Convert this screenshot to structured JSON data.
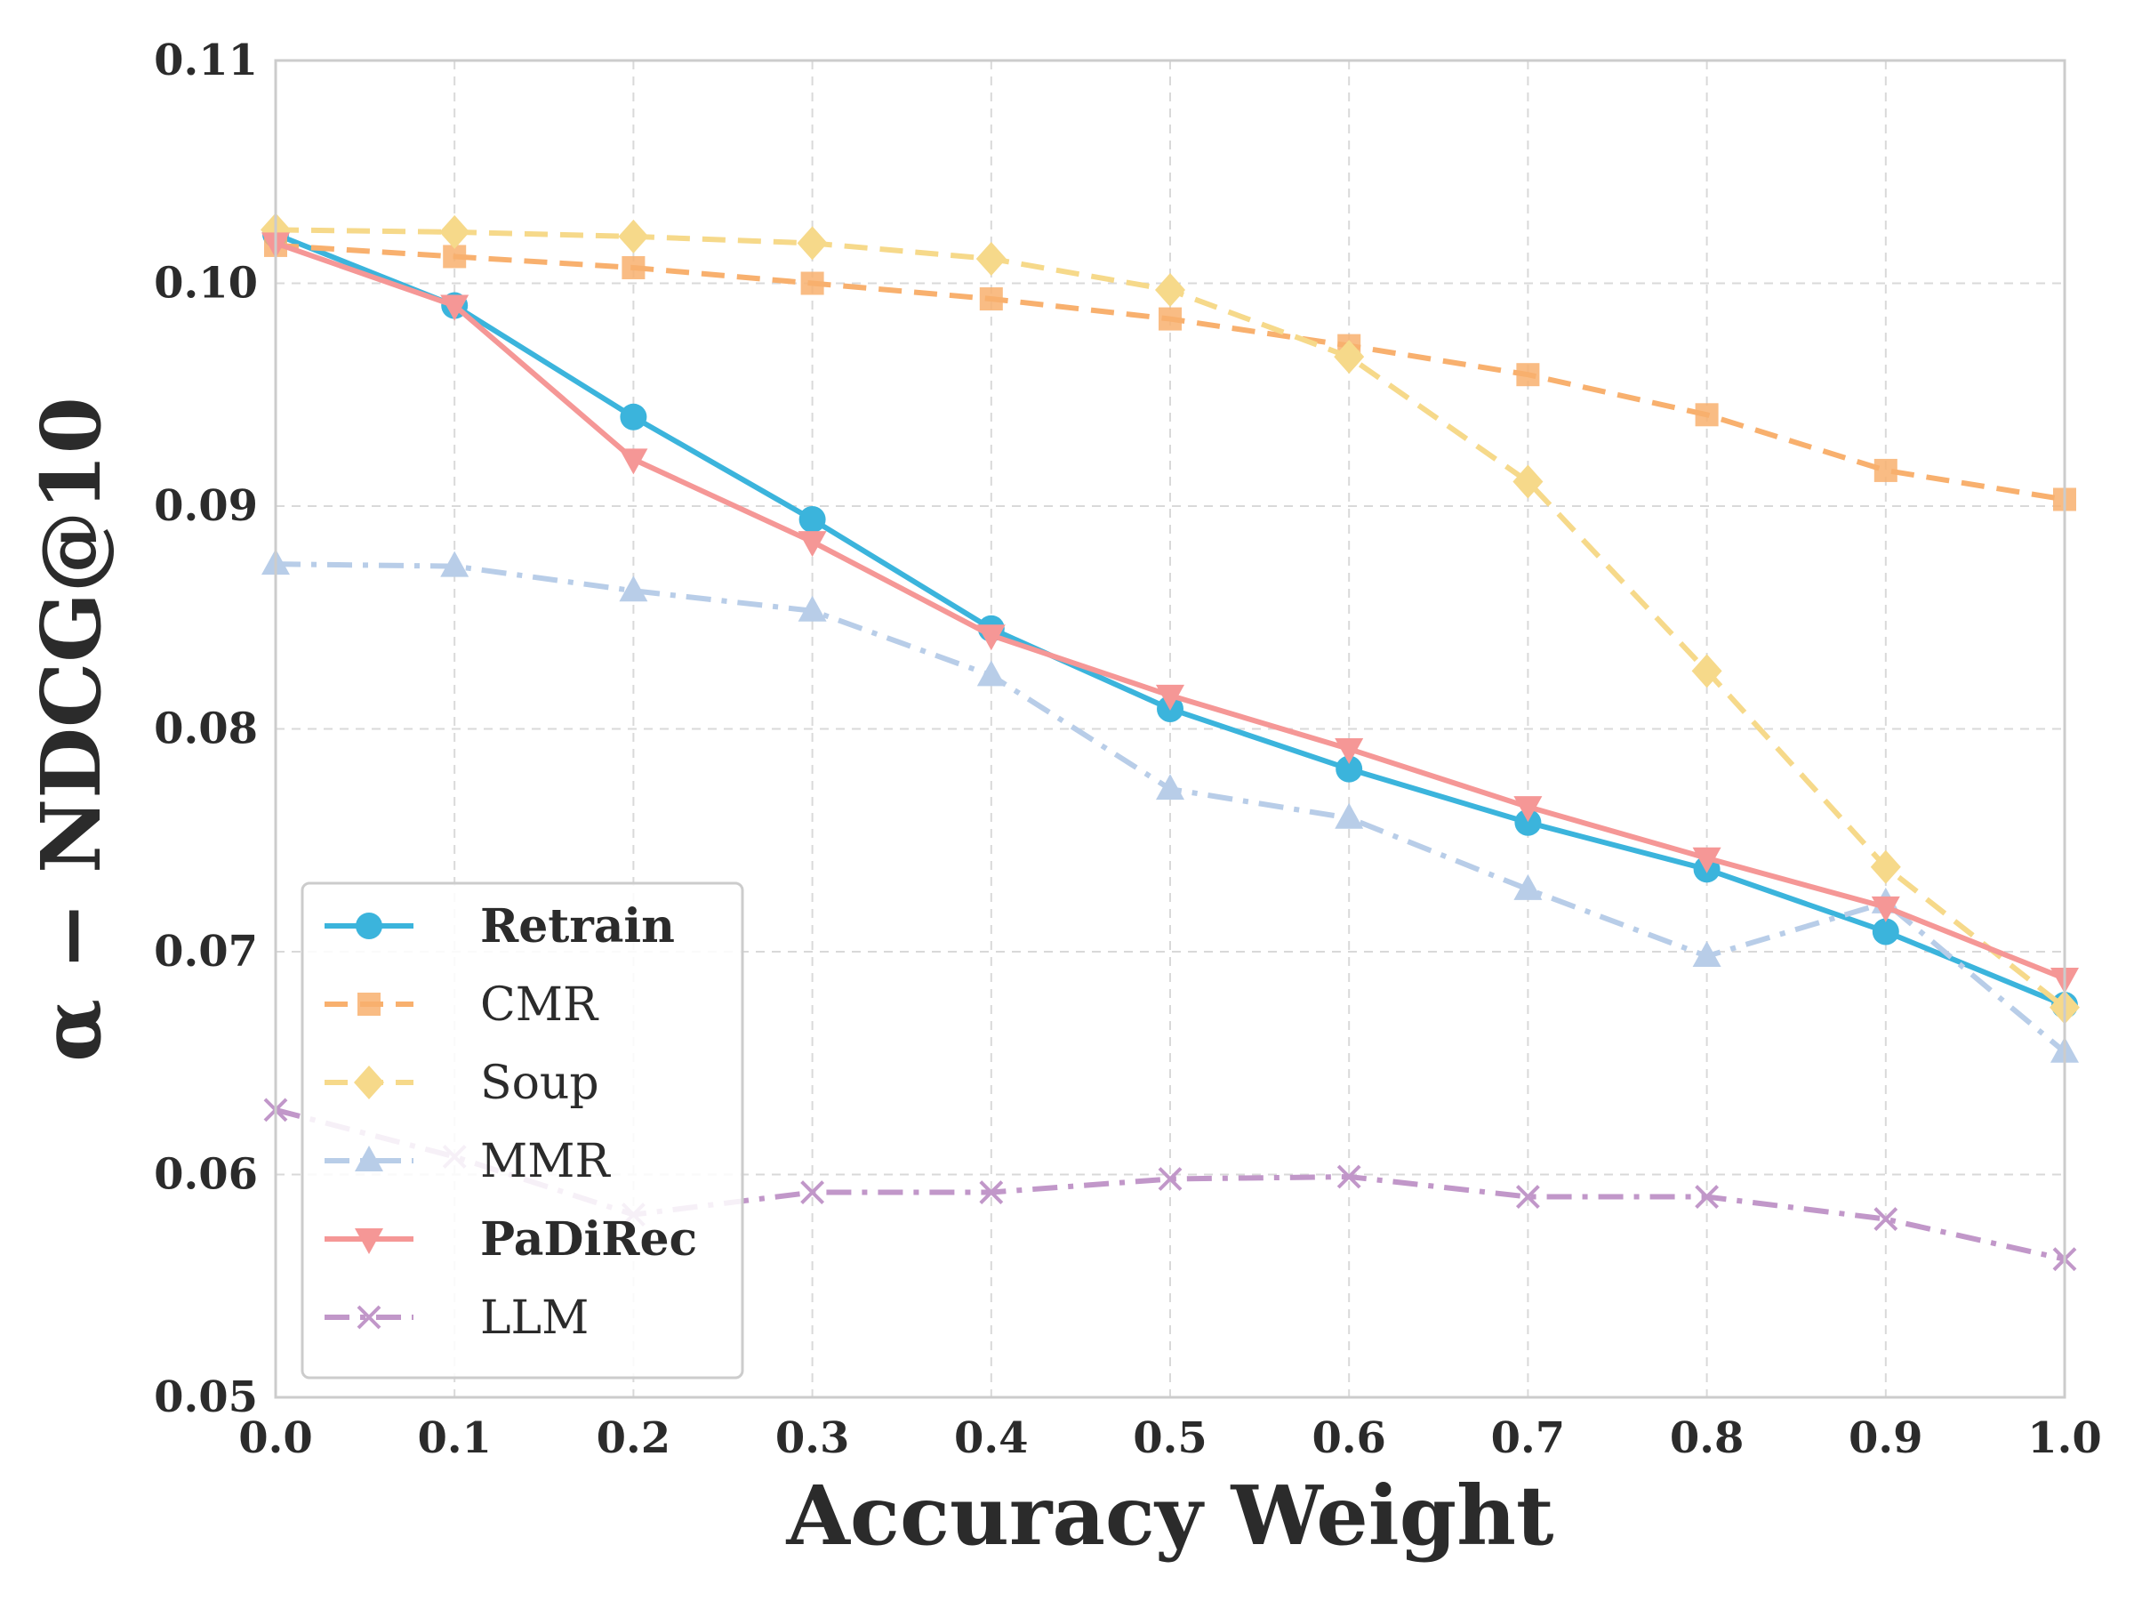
{
  "chart_data": {
    "type": "line",
    "title": "",
    "xlabel": "Accuracy Weight",
    "ylabel": "α − NDCG@10",
    "xlim": [
      0.0,
      1.0
    ],
    "ylim": [
      0.05,
      0.11
    ],
    "xticks": [
      "0.0",
      "0.1",
      "0.2",
      "0.3",
      "0.4",
      "0.5",
      "0.6",
      "0.7",
      "0.8",
      "0.9",
      "1.0"
    ],
    "yticks": [
      "0.05",
      "0.06",
      "0.07",
      "0.08",
      "0.09",
      "0.10",
      "0.11"
    ],
    "grid": true,
    "legend_position": "lower-left",
    "x": [
      0.0,
      0.1,
      0.2,
      0.3,
      0.4,
      0.5,
      0.6,
      0.7,
      0.8,
      0.9,
      1.0
    ],
    "series": [
      {
        "name": "Retrain",
        "bold": true,
        "color": "#3bb4dc",
        "marker": "circle",
        "linestyle": "solid",
        "values": [
          0.1022,
          0.099,
          0.094,
          0.0894,
          0.0845,
          0.0809,
          0.0782,
          0.0758,
          0.0737,
          0.0709,
          0.0676
        ]
      },
      {
        "name": "CMR",
        "bold": false,
        "color": "#f8b06e",
        "marker": "square",
        "linestyle": "dashed",
        "values": [
          0.1017,
          0.1012,
          0.1007,
          0.1,
          0.0993,
          0.0984,
          0.0972,
          0.0959,
          0.0941,
          0.0916,
          0.0903
        ]
      },
      {
        "name": "Soup",
        "bold": false,
        "color": "#f6d98a",
        "marker": "diamond",
        "linestyle": "dashed",
        "values": [
          0.1024,
          0.1023,
          0.1021,
          0.1018,
          0.1011,
          0.0997,
          0.0967,
          0.0911,
          0.0826,
          0.0738,
          0.0675
        ]
      },
      {
        "name": "MMR",
        "bold": false,
        "color": "#b8cde8",
        "marker": "triangle-up",
        "linestyle": "dashdot",
        "values": [
          0.0874,
          0.0873,
          0.0862,
          0.0853,
          0.0824,
          0.0773,
          0.076,
          0.0728,
          0.0698,
          0.0722,
          0.0655
        ]
      },
      {
        "name": "PaDiRec",
        "bold": true,
        "color": "#f59796",
        "marker": "triangle-down",
        "linestyle": "solid",
        "values": [
          0.1018,
          0.099,
          0.0921,
          0.0884,
          0.0842,
          0.0815,
          0.0791,
          0.0765,
          0.0742,
          0.072,
          0.0688
        ]
      },
      {
        "name": "LLM",
        "bold": false,
        "color": "#c197c9",
        "marker": "x",
        "linestyle": "dashdot",
        "values": [
          0.0629,
          0.0608,
          0.0582,
          0.0592,
          0.0592,
          0.0598,
          0.0599,
          0.059,
          0.059,
          0.058,
          0.0562
        ]
      }
    ]
  }
}
